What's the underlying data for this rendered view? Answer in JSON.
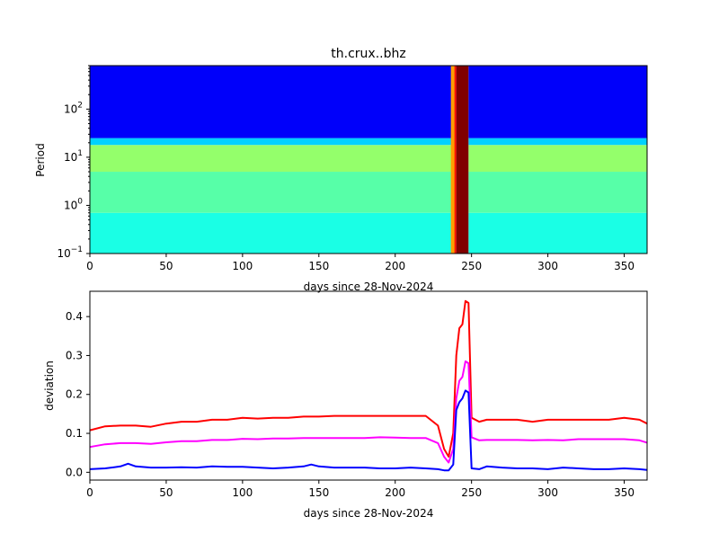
{
  "chart_data": [
    {
      "type": "heatmap",
      "title": "th.crux..bhz",
      "xlabel": "days since 28-Nov-2024",
      "ylabel": "Period",
      "xlim": [
        0,
        365
      ],
      "ylim": [
        0.1,
        800
      ],
      "yscale": "log",
      "colormap": "jet",
      "xticks": [
        "0",
        "50",
        "100",
        "150",
        "200",
        "250",
        "300",
        "350"
      ],
      "yticks": [
        {
          "base": "10",
          "exp": "−1"
        },
        {
          "base": "10",
          "exp": "0"
        },
        {
          "base": "10",
          "exp": "1"
        },
        {
          "base": "10",
          "exp": "2"
        }
      ],
      "bands": [
        {
          "period_range": [
            0.1,
            0.7
          ],
          "level": 0.4
        },
        {
          "period_range": [
            0.7,
            5
          ],
          "level": 0.46
        },
        {
          "period_range": [
            5,
            18
          ],
          "level": 0.52
        },
        {
          "period_range": [
            18,
            25
          ],
          "level": 0.33
        },
        {
          "period_range": [
            25,
            800
          ],
          "level": 0.12
        }
      ],
      "event": {
        "day_range": [
          240,
          248
        ],
        "level": 1.0
      }
    },
    {
      "type": "line",
      "xlabel": "days since 28-Nov-2024",
      "ylabel": "deviation",
      "xlim": [
        0,
        365
      ],
      "ylim": [
        -0.02,
        0.465
      ],
      "xticks": [
        "0",
        "50",
        "100",
        "150",
        "200",
        "250",
        "300",
        "350"
      ],
      "yticks": [
        "0.0",
        "0.1",
        "0.2",
        "0.3",
        "0.4"
      ],
      "series": [
        {
          "color": "#ff0000",
          "x": [
            0,
            10,
            20,
            30,
            40,
            50,
            60,
            70,
            80,
            90,
            100,
            110,
            120,
            130,
            140,
            150,
            160,
            170,
            180,
            190,
            200,
            210,
            220,
            228,
            232,
            235,
            238,
            240,
            242,
            244,
            246,
            248,
            250,
            255,
            260,
            270,
            280,
            290,
            300,
            310,
            320,
            330,
            340,
            350,
            360,
            365
          ],
          "values": [
            0.108,
            0.118,
            0.12,
            0.12,
            0.117,
            0.125,
            0.13,
            0.13,
            0.135,
            0.135,
            0.14,
            0.138,
            0.14,
            0.14,
            0.143,
            0.143,
            0.145,
            0.145,
            0.145,
            0.145,
            0.145,
            0.145,
            0.145,
            0.12,
            0.06,
            0.04,
            0.1,
            0.3,
            0.37,
            0.38,
            0.44,
            0.435,
            0.14,
            0.13,
            0.135,
            0.135,
            0.135,
            0.13,
            0.135,
            0.135,
            0.135,
            0.135,
            0.135,
            0.14,
            0.135,
            0.125
          ]
        },
        {
          "color": "#ff00ff",
          "x": [
            0,
            10,
            20,
            30,
            40,
            50,
            60,
            70,
            80,
            90,
            100,
            110,
            120,
            130,
            140,
            150,
            160,
            170,
            180,
            190,
            200,
            210,
            220,
            228,
            232,
            235,
            238,
            240,
            242,
            244,
            246,
            248,
            250,
            255,
            260,
            270,
            280,
            290,
            300,
            310,
            320,
            330,
            340,
            350,
            360,
            365
          ],
          "values": [
            0.065,
            0.072,
            0.075,
            0.075,
            0.073,
            0.077,
            0.08,
            0.08,
            0.083,
            0.083,
            0.086,
            0.085,
            0.087,
            0.087,
            0.088,
            0.088,
            0.088,
            0.088,
            0.088,
            0.09,
            0.089,
            0.088,
            0.088,
            0.075,
            0.04,
            0.025,
            0.06,
            0.19,
            0.235,
            0.245,
            0.285,
            0.28,
            0.09,
            0.082,
            0.083,
            0.083,
            0.083,
            0.082,
            0.083,
            0.082,
            0.085,
            0.085,
            0.085,
            0.085,
            0.082,
            0.076
          ]
        },
        {
          "color": "#0000ff",
          "x": [
            0,
            10,
            20,
            25,
            30,
            40,
            50,
            60,
            70,
            80,
            90,
            100,
            110,
            120,
            130,
            140,
            145,
            150,
            160,
            170,
            180,
            190,
            200,
            210,
            220,
            228,
            232,
            235,
            238,
            240,
            242,
            244,
            246,
            248,
            250,
            255,
            260,
            270,
            280,
            290,
            300,
            310,
            320,
            330,
            340,
            350,
            360,
            365
          ],
          "values": [
            0.008,
            0.01,
            0.015,
            0.022,
            0.015,
            0.012,
            0.012,
            0.013,
            0.012,
            0.015,
            0.014,
            0.014,
            0.012,
            0.01,
            0.012,
            0.015,
            0.02,
            0.015,
            0.012,
            0.012,
            0.012,
            0.01,
            0.01,
            0.012,
            0.01,
            0.008,
            0.005,
            0.005,
            0.02,
            0.16,
            0.18,
            0.19,
            0.21,
            0.205,
            0.01,
            0.008,
            0.015,
            0.012,
            0.01,
            0.01,
            0.008,
            0.012,
            0.01,
            0.008,
            0.008,
            0.01,
            0.008,
            0.006
          ]
        }
      ]
    }
  ]
}
